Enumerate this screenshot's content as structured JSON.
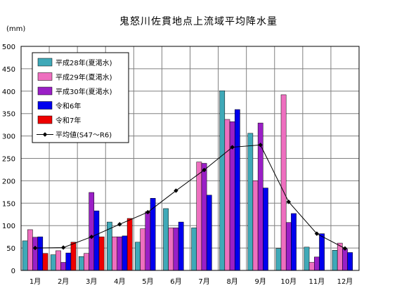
{
  "chart_data": {
    "type": "bar",
    "title": "鬼怒川佐貫地点上流域平均降水量",
    "ylabel": "(mm)",
    "xlabel": "",
    "ylim": [
      0,
      500
    ],
    "yticks": [
      0,
      50,
      100,
      150,
      200,
      250,
      300,
      350,
      400,
      450,
      500
    ],
    "grid": true,
    "legend_position": "top-left",
    "categories": [
      "1月",
      "2月",
      "3月",
      "4月",
      "5月",
      "6月",
      "7月",
      "8月",
      "9月",
      "10月",
      "11月",
      "12月"
    ],
    "series": [
      {
        "name": "平成28年(夏渇水)",
        "color": "#3fa9b8",
        "values": [
          66,
          35,
          31,
          108,
          63,
          138,
          95,
          401,
          306,
          49,
          52,
          45
        ]
      },
      {
        "name": "平成29年(夏渇水)",
        "color": "#ee6fbf",
        "values": [
          91,
          44,
          38,
          75,
          93,
          95,
          242,
          337,
          200,
          392,
          18,
          61
        ]
      },
      {
        "name": "平成30年(夏渇水)",
        "color": "#9a1fc6",
        "values": [
          74,
          18,
          174,
          75,
          131,
          95,
          239,
          332,
          329,
          107,
          30,
          48
        ]
      },
      {
        "name": "令和6年",
        "color": "#0000ee",
        "values": [
          75,
          39,
          133,
          77,
          161,
          108,
          168,
          359,
          184,
          127,
          82,
          40
        ]
      },
      {
        "name": "令和7年",
        "color": "#ee0000",
        "values": [
          38,
          63,
          75,
          116,
          null,
          null,
          null,
          null,
          null,
          null,
          null,
          null
        ]
      }
    ],
    "line_series": {
      "name": "平均値(S47～R6)",
      "color": "#000000",
      "marker": "diamond",
      "values": [
        50,
        51,
        75,
        103,
        130,
        178,
        224,
        275,
        280,
        153,
        82,
        49
      ]
    }
  }
}
